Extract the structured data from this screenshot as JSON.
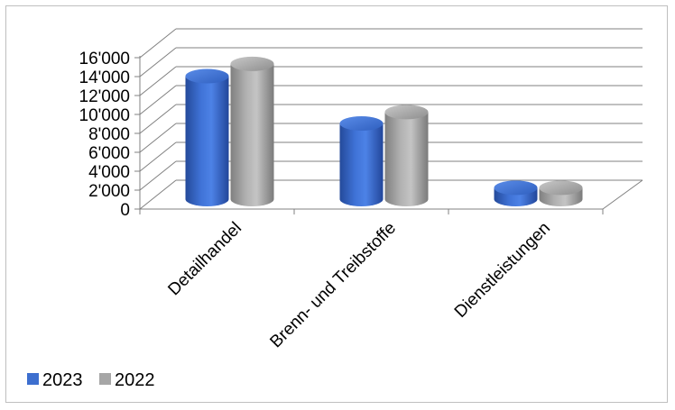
{
  "chart_data": {
    "type": "bar",
    "style": "3d-cylinder",
    "categories": [
      "Detailhandel",
      "Brenn- und Treibstoffe",
      "Dienstleistungen"
    ],
    "series": [
      {
        "name": "2023",
        "values": [
          13000,
          8000,
          1200
        ],
        "color": "#3d6fcf"
      },
      {
        "name": "2022",
        "values": [
          14300,
          9200,
          1200
        ],
        "color": "#a6a6a6"
      }
    ],
    "ylim": [
      0,
      16000
    ],
    "yticks": [
      "0",
      "2'000",
      "4'000",
      "6'000",
      "8'000",
      "10'000",
      "12'000",
      "14'000",
      "16'000"
    ],
    "ytick_values": [
      0,
      2000,
      4000,
      6000,
      8000,
      10000,
      12000,
      14000,
      16000
    ],
    "grid": true,
    "legend_position": "bottom-left",
    "title": "",
    "xlabel": "",
    "ylabel": ""
  }
}
